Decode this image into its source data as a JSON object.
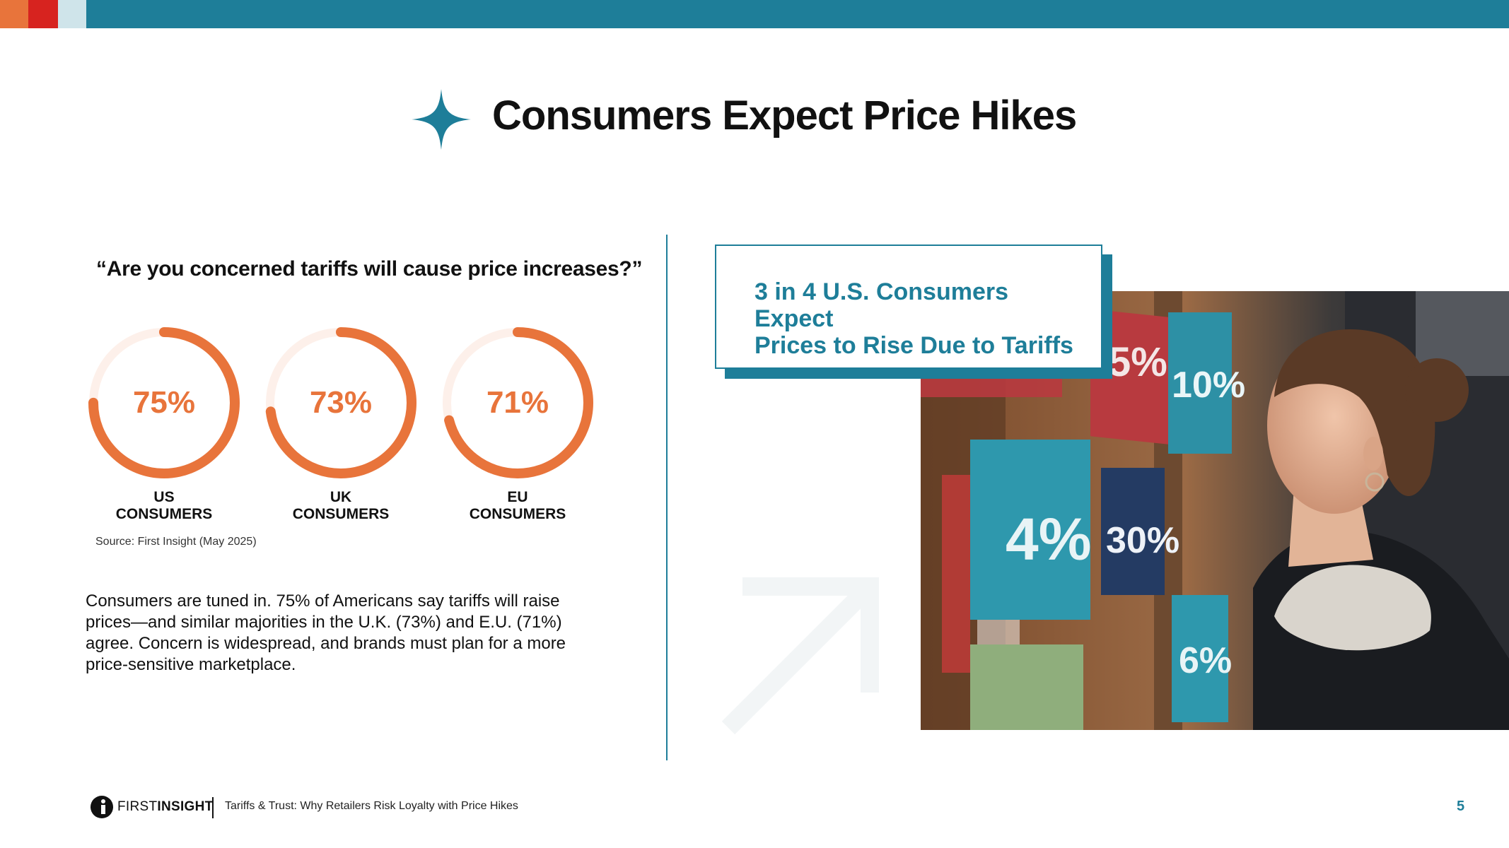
{
  "slide": {
    "title": "Consumers Expect Price Hikes",
    "page_number": "5"
  },
  "survey": {
    "question": "“Are you concerned tariffs will cause price increases?”",
    "gauges": [
      {
        "pct_label": "75%",
        "value": 75,
        "label_line1": "US",
        "label_line2": "CONSUMERS"
      },
      {
        "pct_label": "73%",
        "value": 73,
        "label_line1": "UK",
        "label_line2": "CONSUMERS"
      },
      {
        "pct_label": "71%",
        "value": 71,
        "label_line1": "EU",
        "label_line2": "CONSUMERS"
      }
    ],
    "source": "Source: First Insight (May 2025)"
  },
  "body": {
    "paragraph": "Consumers are tuned in. 75% of Americans say tariffs will raise prices—and similar majorities in the U.K. (73%) and E.U. (71%) agree. Concern is widespread, and brands must plan for a more price-sensitive marketplace."
  },
  "callout": {
    "line1": "3 in 4 U.S. Consumers Expect",
    "line2": "Prices to Rise Due to Tariffs"
  },
  "photo": {
    "signs": [
      "5%",
      "10%",
      "4%",
      "30%",
      "6%"
    ]
  },
  "footer": {
    "logo_first": "FIRST",
    "logo_second": "INSIGHT",
    "caption": "Tariffs & Trust: Why Retailers Risk Loyalty with Price Hikes"
  },
  "colors": {
    "brand_teal": "#1e7e99",
    "accent_orange": "#e8743b",
    "accent_red": "#d7231f",
    "light_blue": "#cfe4ea",
    "gauge_track": "#fdf0ea"
  }
}
